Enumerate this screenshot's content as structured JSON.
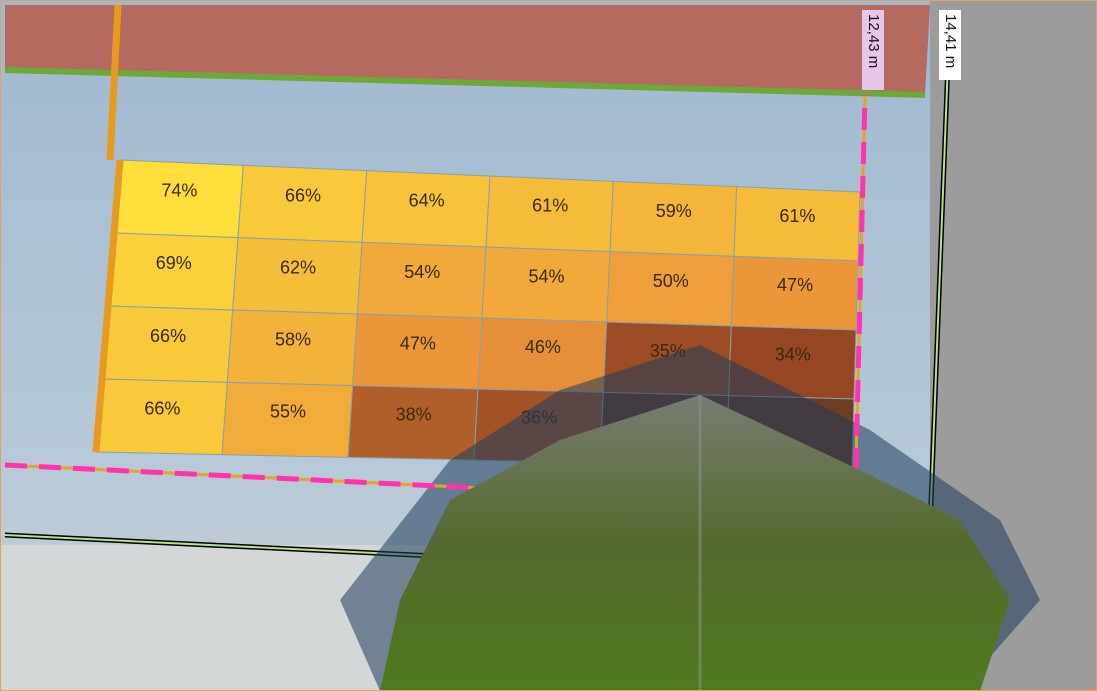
{
  "measurements": [
    "12,43 m",
    "14,41 m"
  ],
  "grid": {
    "rows": [
      [
        "74%",
        "66%",
        "64%",
        "61%",
        "59%",
        "61%"
      ],
      [
        "69%",
        "62%",
        "54%",
        "54%",
        "50%",
        "47%"
      ],
      [
        "66%",
        "58%",
        "47%",
        "46%",
        "35%",
        "34%"
      ],
      [
        "66%",
        "55%",
        "38%",
        "36%",
        "",
        ""
      ]
    ]
  }
}
